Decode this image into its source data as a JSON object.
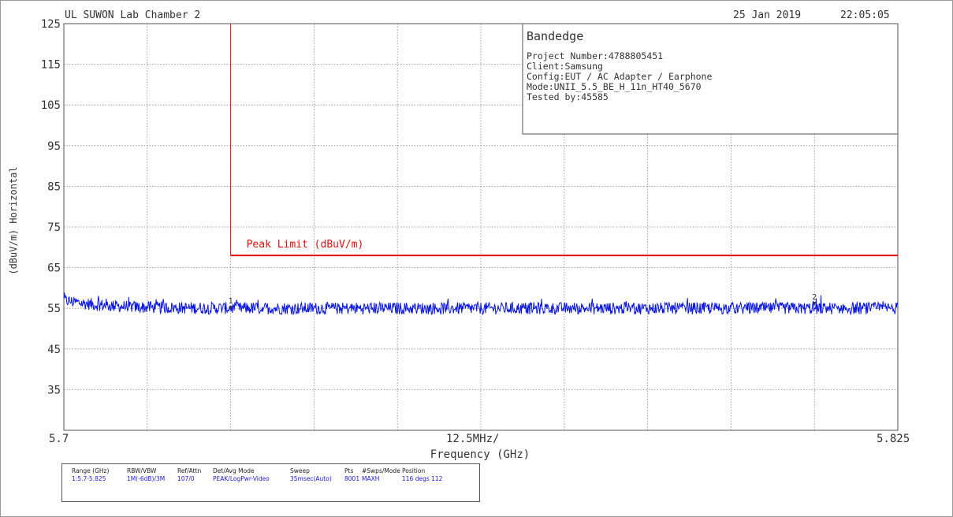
{
  "header": {
    "lab": "UL SUWON Lab Chamber 2",
    "date": "25 Jan 2019",
    "time": "22:05:05"
  },
  "info_box": {
    "title": "Bandedge",
    "lines": [
      "Project Number:4788805451",
      "Client:Samsung",
      "Config:EUT / AC Adapter / Earphone",
      "Mode:UNII_5.5_BE_H_11n_HT40_5670",
      "Tested by:45585"
    ]
  },
  "chart_data": {
    "type": "line",
    "ylabel": "(dBuV/m) Horizontal",
    "xlabel": "Frequency (GHz)",
    "xlim": [
      5.7,
      5.825
    ],
    "ylim": [
      25,
      125
    ],
    "y_ticks": [
      "125",
      "115",
      "105",
      "95",
      "85",
      "75",
      "65",
      "55",
      "45",
      "35"
    ],
    "x_tick_labels": {
      "start": "5.7",
      "center": "12.5MHz/",
      "end": "5.825"
    },
    "grid": true,
    "limit_line": {
      "label": "Peak Limit (dBuV/m)",
      "vertical_at_x": 5.725,
      "level": 68,
      "color": "#e01010"
    },
    "trace": {
      "color": "#0b16e0",
      "x_start": 5.7,
      "x_end": 5.825,
      "level_start": 57,
      "level_settled": 55,
      "noise_pp": 3
    },
    "markers": [
      {
        "label": "1",
        "x": 5.725,
        "y": 55
      },
      {
        "label": "2",
        "x": 5.8125,
        "y": 56
      }
    ]
  },
  "settings_table": {
    "columns": [
      {
        "header": "Range (GHz)",
        "value": "1:5.7-5.825"
      },
      {
        "header": "RBW/VBW",
        "value": "1M(-6dB)/3M"
      },
      {
        "header": "Ref/Attn",
        "value": "107/0"
      },
      {
        "header": "Det/Avg Mode",
        "value": "PEAK/LogPwr-Video"
      },
      {
        "header": "Sweep",
        "value": "35msec(Auto)"
      },
      {
        "header": "Pts",
        "value": "8001"
      },
      {
        "header": "#Swps/Mode",
        "value": "MAXH"
      },
      {
        "header": "Position",
        "value": "116 degs 112"
      }
    ]
  }
}
